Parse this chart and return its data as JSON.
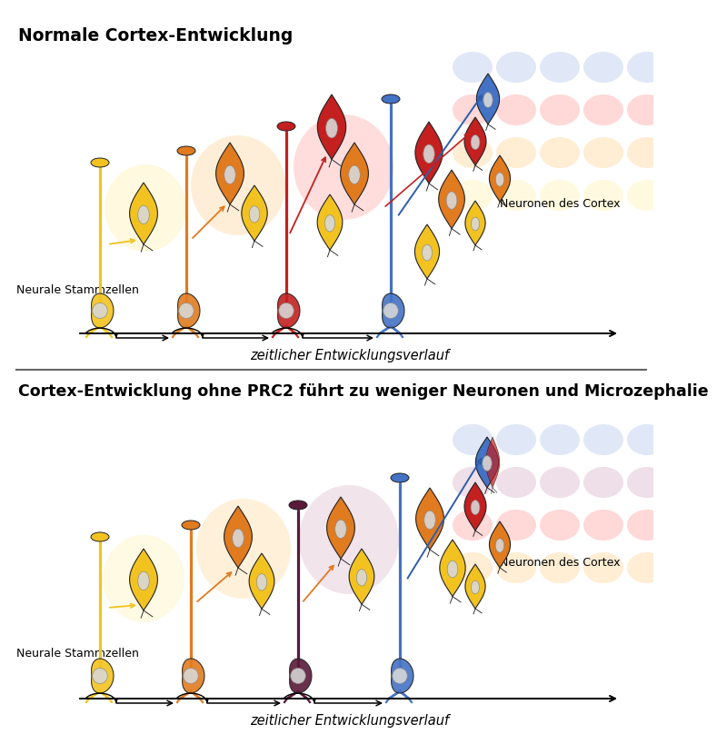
{
  "title_top": "Normale Cortex-Entwicklung",
  "title_bottom": "Cortex-Entwicklung ohne PRC2 führt zu weniger Neuronen und Microzephalie",
  "xlabel": "zeitlicher Entwicklungsverlauf",
  "label_stem": "Neurale Stammzellen",
  "label_cortex": "Neuronen des Cortex",
  "colors": {
    "yellow": "#F2C320",
    "orange": "#E07B20",
    "red": "#C42020",
    "blue": "#4472C4",
    "dark_maroon": "#5A1A3A",
    "dark_blue": "#2E5EAA",
    "light_yellow": "#FFF3BB",
    "light_orange": "#FFD8A0",
    "light_red": "#FFAAAA",
    "light_blue": "#BBCCEE",
    "light_purple": "#DDB8CC",
    "nucleus_light": "#D8D8D8",
    "nucleus_dark": "#888888",
    "outline": "#222222",
    "bg": "#FFFFFF"
  },
  "fig_width": 7.09,
  "fig_height": 8.0
}
